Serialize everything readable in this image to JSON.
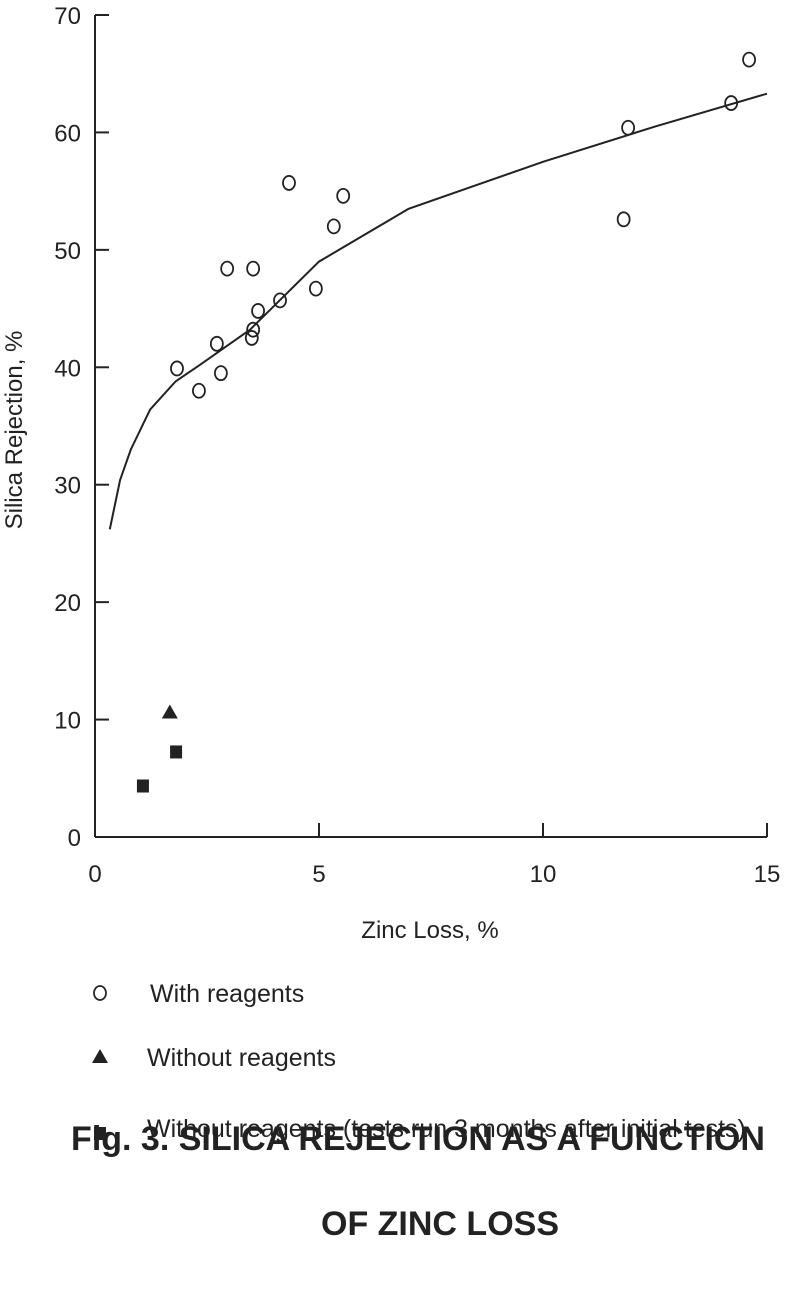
{
  "chart_data": {
    "type": "scatter",
    "title": [
      "Fig. 3. SILICA REJECTION AS A FUNCTION",
      "OF ZINC LOSS"
    ],
    "x_label": "Zinc Loss, %",
    "y_label": "Silica Rejection, %",
    "xlim": [
      0,
      15
    ],
    "ylim": [
      0,
      70
    ],
    "xticks": [
      0,
      5,
      10,
      15
    ],
    "yticks": [
      0,
      10,
      20,
      30,
      40,
      50,
      60,
      70
    ],
    "series": [
      {
        "name": "With reagents",
        "marker": "circle",
        "color": "#222222",
        "x": [
          1.83,
          2.32,
          2.72,
          2.81,
          2.95,
          3.53,
          3.53,
          3.5,
          3.64,
          4.13,
          4.33,
          4.93,
          5.33,
          5.54,
          11.8,
          11.9,
          14.2,
          14.6
        ],
        "values": [
          39.9,
          38.0,
          42.0,
          39.5,
          48.4,
          48.4,
          43.2,
          42.5,
          44.8,
          45.7,
          55.7,
          46.7,
          52.0,
          54.6,
          52.6,
          60.4,
          62.5,
          66.2
        ]
      },
      {
        "name": "Without reagents",
        "marker": "triangle",
        "color": "#222222",
        "x": [
          1.67
        ],
        "values": [
          10.6
        ]
      },
      {
        "name": "Without reagents (tests run 3 months after initial tests)",
        "marker": "square",
        "color": "#222222",
        "x": [
          1.07,
          1.81
        ],
        "values": [
          4.3,
          7.2
        ]
      }
    ],
    "curve": {
      "color": "#222222",
      "x": [
        0.33,
        0.56,
        0.8,
        1.23,
        1.8,
        2.34,
        3.46,
        5,
        7,
        10,
        12.5,
        15
      ],
      "values": [
        26.2,
        30.4,
        33.0,
        36.4,
        38.8,
        40.2,
        43.2,
        49.0,
        53.5,
        57.5,
        60.5,
        63.3
      ]
    }
  }
}
